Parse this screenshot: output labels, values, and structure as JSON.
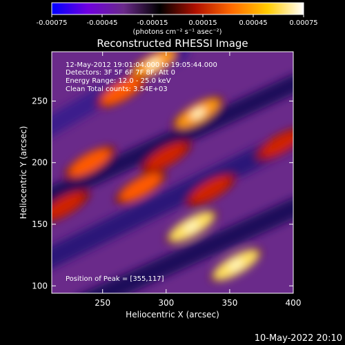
{
  "chart_data": {
    "type": "heatmap",
    "title": "Reconstructed RHESSI Image",
    "xlabel": "Heliocentric X (arcsec)",
    "ylabel": "Heliocentric Y (arcsec)",
    "xlim": [
      210,
      400
    ],
    "ylim": [
      94,
      290
    ],
    "x_ticks": [
      250,
      300,
      350,
      400
    ],
    "y_ticks": [
      100,
      150,
      200,
      250
    ],
    "colorbar": {
      "range": [
        -0.00075,
        0.00075
      ],
      "ticks": [
        "-0.00075",
        "-0.00045",
        "-0.00015",
        "0.00015",
        "0.00045",
        "0.00075"
      ],
      "tick_values": [
        -0.00075,
        -0.00045,
        -0.00015,
        0.00015,
        0.00045,
        0.00075
      ],
      "unit_label": "(photons cm⁻² s⁻¹ asec⁻²)",
      "colormap": [
        "#0000ff",
        "#7000e0",
        "#6a2a8a",
        "#000000",
        "#b01000",
        "#ff6a00",
        "#ffcc00",
        "#ffffff"
      ]
    },
    "annotations": {
      "time": "12-May-2012 19:01:04.000 to 19:05:44.000",
      "detectors": "Detectors: 3F 5F 6F 7F 8F, Att 0",
      "energy": "Energy Range: 12.0 - 25.0 keV",
      "clean": "Clean    Total counts: 3.54E+03",
      "peak": "Position of Peak = [355,117]"
    },
    "peak_position": [
      355,
      117
    ],
    "bright_features": [
      {
        "x": 290,
        "y": 280,
        "level": 0.9
      },
      {
        "x": 265,
        "y": 258,
        "level": 0.7
      },
      {
        "x": 325,
        "y": 240,
        "level": 0.9
      },
      {
        "x": 300,
        "y": 205,
        "level": 0.6
      },
      {
        "x": 240,
        "y": 200,
        "level": 0.75
      },
      {
        "x": 280,
        "y": 180,
        "level": 0.8
      },
      {
        "x": 220,
        "y": 165,
        "level": 0.55
      },
      {
        "x": 320,
        "y": 148,
        "level": 0.95
      },
      {
        "x": 355,
        "y": 117,
        "level": 1.0
      },
      {
        "x": 335,
        "y": 178,
        "level": 0.6
      },
      {
        "x": 390,
        "y": 215,
        "level": 0.5
      }
    ]
  },
  "footer": {
    "timestamp": "10-May-2022 20:10"
  }
}
